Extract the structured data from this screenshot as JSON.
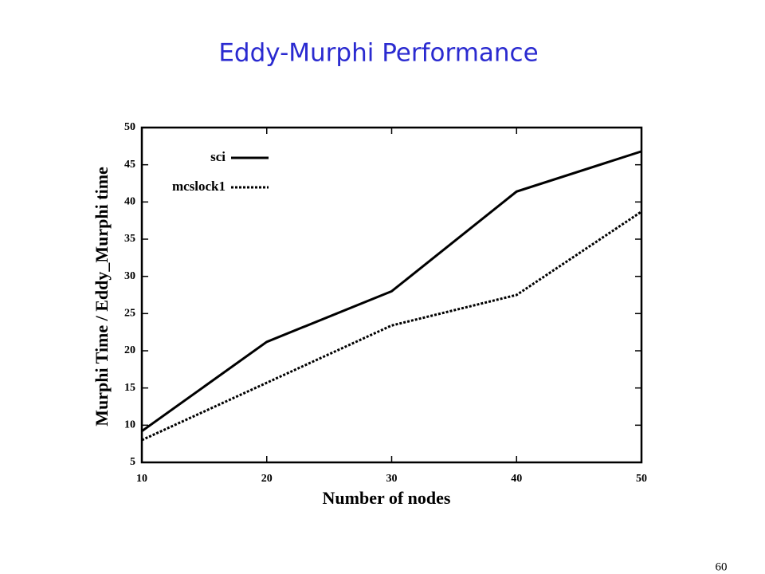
{
  "chart_data": {
    "type": "line",
    "title": "Eddy-Murphi Performance",
    "x_label": "Number of nodes",
    "y_label": "Murphi Time / Eddy_Murphi time",
    "x": [
      10,
      20,
      30,
      40,
      50
    ],
    "series": [
      {
        "name": "sci",
        "color": "#000000",
        "line_style": "solid",
        "values": [
          9.2,
          21.2,
          28.0,
          41.4,
          46.8
        ]
      },
      {
        "name": "mcslock1",
        "color": "#000000",
        "line_style": "dotted",
        "values": [
          8.0,
          15.7,
          23.4,
          27.5,
          38.7
        ]
      }
    ],
    "xlim": [
      10,
      50
    ],
    "xticks": [
      10,
      20,
      30,
      40,
      50
    ],
    "ylim": [
      5,
      50
    ],
    "yticks": [
      5,
      10,
      15,
      20,
      25,
      30,
      35,
      40,
      45,
      50
    ],
    "grid": false,
    "legend": "upper left"
  },
  "page_number": "60"
}
